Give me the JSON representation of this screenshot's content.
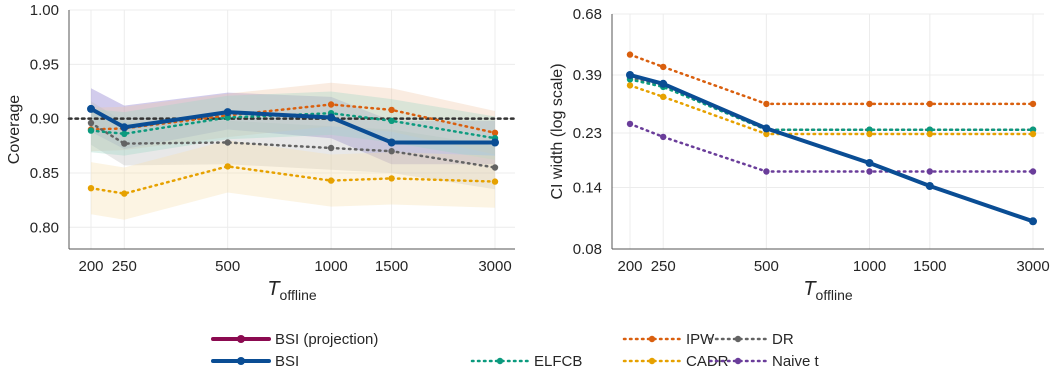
{
  "chart_data": [
    {
      "type": "line",
      "ylabel": "Coverage",
      "xlabel_main": "T",
      "xlabel_sub": "offline",
      "xscale": "log",
      "x": [
        200,
        250,
        500,
        1000,
        1500,
        3000
      ],
      "xticks": [
        "200",
        "250",
        "500",
        "1000",
        "1500",
        "3000"
      ],
      "ylim": [
        0.78,
        1.0
      ],
      "yticks": [
        "0.80",
        "0.85",
        "0.90",
        "0.95",
        "1.00"
      ],
      "ytick_values": [
        0.8,
        0.85,
        0.9,
        0.95,
        1.0
      ],
      "grid": true,
      "reference_line": 0.9,
      "series": [
        {
          "name": "BSI",
          "color": "#0a4d94",
          "style": "solid",
          "values": [
            0.909,
            0.892,
            0.906,
            0.901,
            0.878,
            0.878
          ],
          "band": [
            [
              0.888,
              0.928
            ],
            [
              0.872,
              0.912
            ],
            [
              0.89,
              0.924
            ],
            [
              0.882,
              0.92
            ],
            [
              0.858,
              0.898
            ],
            [
              0.858,
              0.898
            ]
          ],
          "band_color": "#7d6cc9"
        },
        {
          "name": "IPW",
          "color": "#d95f0e",
          "style": "dotted",
          "values": [
            0.89,
            0.891,
            0.903,
            0.913,
            0.908,
            0.887
          ],
          "band": [
            [
              0.87,
              0.91
            ],
            [
              0.871,
              0.911
            ],
            [
              0.883,
              0.923
            ],
            [
              0.893,
              0.933
            ],
            [
              0.888,
              0.928
            ],
            [
              0.867,
              0.907
            ]
          ],
          "band_color": "#f2c9a8"
        },
        {
          "name": "DR",
          "color": "#636363",
          "style": "dotted",
          "values": [
            0.896,
            0.877,
            0.878,
            0.873,
            0.87,
            0.855
          ],
          "band": [
            [
              0.876,
              0.916
            ],
            [
              0.857,
              0.897
            ],
            [
              0.858,
              0.898
            ],
            [
              0.853,
              0.893
            ],
            [
              0.85,
              0.89
            ],
            [
              0.835,
              0.875
            ]
          ],
          "band_color": "#bdbdbd"
        },
        {
          "name": "ELFCB",
          "color": "#0b9a7e",
          "style": "dotted",
          "values": [
            0.889,
            0.886,
            0.901,
            0.905,
            0.898,
            0.882
          ],
          "band": [
            [
              0.869,
              0.909
            ],
            [
              0.866,
              0.906
            ],
            [
              0.881,
              0.921
            ],
            [
              0.885,
              0.925
            ],
            [
              0.878,
              0.918
            ],
            [
              0.862,
              0.902
            ]
          ],
          "band_color": "#9fd8c6"
        },
        {
          "name": "CADR",
          "color": "#e6a100",
          "style": "dotted",
          "values": [
            0.836,
            0.831,
            0.856,
            0.843,
            0.845,
            0.842
          ],
          "band": [
            [
              0.812,
              0.86
            ],
            [
              0.807,
              0.855
            ],
            [
              0.832,
              0.88
            ],
            [
              0.819,
              0.867
            ],
            [
              0.821,
              0.869
            ],
            [
              0.818,
              0.866
            ]
          ],
          "band_color": "#f7e0b0"
        }
      ]
    },
    {
      "type": "line",
      "ylabel": "CI width (log scale)",
      "xlabel_main": "T",
      "xlabel_sub": "offline",
      "xscale": "log",
      "yscale": "log",
      "x": [
        200,
        250,
        500,
        1000,
        1500,
        3000
      ],
      "xticks": [
        "200",
        "250",
        "500",
        "1000",
        "1500",
        "3000"
      ],
      "ylim": [
        0.08,
        0.68
      ],
      "yticks": [
        "0.08",
        "0.14",
        "0.23",
        "0.39",
        "0.68"
      ],
      "ytick_values": [
        0.08,
        0.14,
        0.23,
        0.39,
        0.68
      ],
      "grid": true,
      "series": [
        {
          "name": "BSI",
          "color": "#0a4d94",
          "style": "solid",
          "values": [
            0.39,
            0.36,
            0.24,
            0.175,
            0.142,
            0.103
          ]
        },
        {
          "name": "IPW",
          "color": "#d95f0e",
          "style": "dotted",
          "values": [
            0.47,
            0.42,
            0.3,
            0.3,
            0.3,
            0.3
          ]
        },
        {
          "name": "DR",
          "color": "#636363",
          "style": "dotted",
          "values": [
            0.38,
            0.355,
            0.237,
            0.237,
            0.237,
            0.237
          ]
        },
        {
          "name": "ELFCB",
          "color": "#0b9a7e",
          "style": "dotted",
          "values": [
            0.375,
            0.35,
            0.237,
            0.237,
            0.237,
            0.237
          ]
        },
        {
          "name": "CADR",
          "color": "#e6a100",
          "style": "dotted",
          "values": [
            0.355,
            0.32,
            0.228,
            0.228,
            0.228,
            0.228
          ]
        },
        {
          "name": "Naive t",
          "color": "#6a3d9a",
          "style": "dotted",
          "values": [
            0.25,
            0.222,
            0.162,
            0.162,
            0.162,
            0.162
          ]
        }
      ]
    }
  ],
  "legend": {
    "placement": "bottom",
    "entries": [
      {
        "label": "BSI (projection)",
        "color": "#8b0a50",
        "style": "solid"
      },
      {
        "label": "BSI",
        "color": "#0a4d94",
        "style": "solid"
      },
      {
        "label": "ELFCB",
        "color": "#0b9a7e",
        "style": "dotted"
      },
      {
        "label": "IPW",
        "color": "#d95f0e",
        "style": "dotted"
      },
      {
        "label": "CADR",
        "color": "#e6a100",
        "style": "dotted"
      },
      {
        "label": "DR",
        "color": "#636363",
        "style": "dotted"
      },
      {
        "label": "Naive t",
        "color": "#6a3d9a",
        "style": "dotted"
      }
    ]
  }
}
